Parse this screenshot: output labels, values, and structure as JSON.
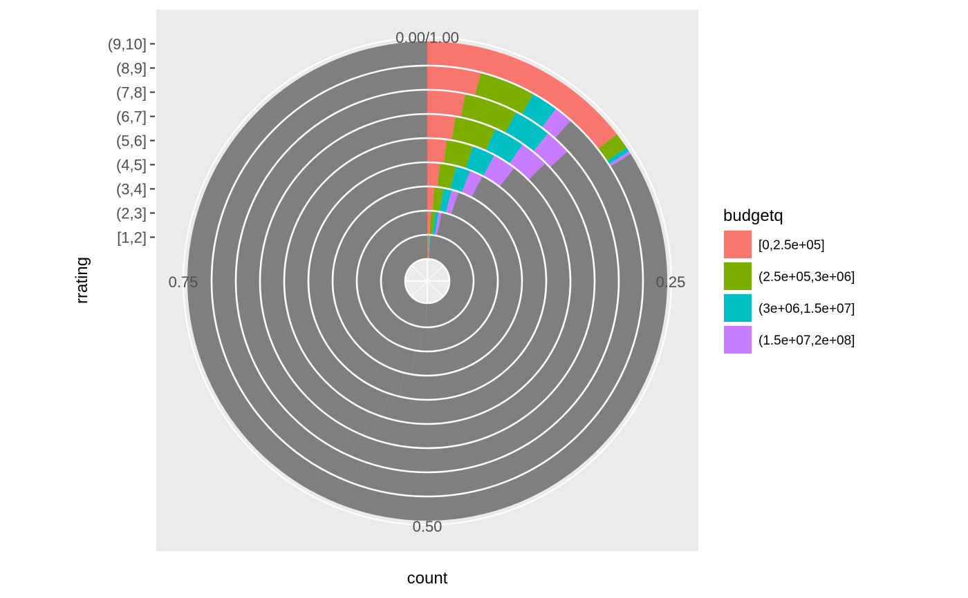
{
  "chart_data": {
    "type": "bar",
    "coord": "polar",
    "xlabel": "count",
    "ylabel": "rrating",
    "categories": [
      "[1,2]",
      "(2,3]",
      "(3,4]",
      "(4,5]",
      "(5,6]",
      "(6,7]",
      "(7,8]",
      "(8,9]",
      "(9,10]"
    ],
    "theta_ticks": [
      "0.00/1.00",
      "0.25",
      "0.50",
      "0.75"
    ],
    "theta_range": [
      0,
      1
    ],
    "stacked": true,
    "series": [
      {
        "name": "[0,2.5e+05]",
        "color": "#F8766D",
        "values": [
          0.002,
          0.008,
          0.012,
          0.017,
          0.022,
          0.027,
          0.032,
          0.04,
          0.145
        ]
      },
      {
        "name": "(2.5e+05,3e+06]",
        "color": "#7CAE00",
        "values": [
          0.004,
          0.01,
          0.016,
          0.022,
          0.03,
          0.04,
          0.045,
          0.042,
          0.011
        ]
      },
      {
        "name": "(3e+06,1.5e+07]",
        "color": "#00BFC4",
        "values": [
          0.002,
          0.008,
          0.014,
          0.02,
          0.026,
          0.03,
          0.032,
          0.02,
          0.003
        ]
      },
      {
        "name": "(1.5e+07,2e+08]",
        "color": "#C77CFF",
        "values": [
          0.002,
          0.007,
          0.012,
          0.018,
          0.026,
          0.028,
          0.022,
          0.014,
          0.002
        ]
      }
    ],
    "remainder_color": "#7F7F7F",
    "legend": {
      "title": "budgetq",
      "position": "right"
    },
    "grid": true
  }
}
